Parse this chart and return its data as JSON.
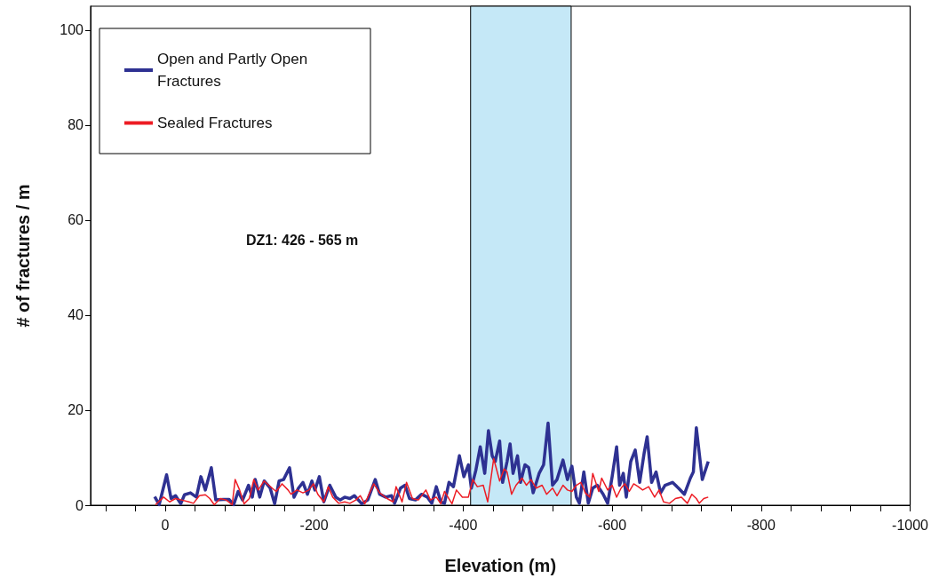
{
  "chart_data": {
    "type": "line",
    "xlabel": "Elevation (m)",
    "ylabel": "# of fractures / m",
    "xlim": [
      100,
      -1000
    ],
    "xticks": [
      {
        "value": 80,
        "label": null
      },
      {
        "value": 40,
        "label": null
      },
      0,
      {
        "value": -40,
        "label": null
      },
      {
        "value": -80,
        "label": null
      },
      {
        "value": -120,
        "label": null
      },
      {
        "value": -160,
        "label": null
      },
      -200,
      {
        "value": -240,
        "label": null
      },
      {
        "value": -280,
        "label": null
      },
      {
        "value": -320,
        "label": null
      },
      {
        "value": -360,
        "label": null
      },
      -400,
      {
        "value": -440,
        "label": null
      },
      {
        "value": -480,
        "label": null
      },
      {
        "value": -520,
        "label": null
      },
      {
        "value": -560,
        "label": null
      },
      -600,
      {
        "value": -640,
        "label": null
      },
      {
        "value": -680,
        "label": null
      },
      {
        "value": -720,
        "label": null
      },
      {
        "value": -760,
        "label": null
      },
      -800,
      {
        "value": -840,
        "label": null
      },
      {
        "value": -880,
        "label": null
      },
      {
        "value": -920,
        "label": null
      },
      {
        "value": -960,
        "label": null
      },
      -1000
    ],
    "ylim": [
      0,
      105
    ],
    "yticks": [
      0,
      20,
      40,
      60,
      80,
      100
    ],
    "grid": false,
    "legend": "top left",
    "marker": "none",
    "bands": [
      {
        "axis": "x",
        "from": -410,
        "to": -545,
        "color": "#c5e8f7"
      }
    ],
    "annotations": [
      "DZ1: 426 - 565 m"
    ],
    "series": [
      {
        "name": "Open and Partly Open Fractures",
        "color": "#2e3192",
        "x": [
          14,
          8,
          -2,
          -8,
          -14,
          -21,
          -26,
          -34,
          -42,
          -48,
          -54,
          -62,
          -68,
          -78,
          -86,
          -92,
          -98,
          -104,
          -112,
          -117,
          -121,
          -127,
          -133,
          -141,
          -147,
          -153,
          -159,
          -167,
          -173,
          -179,
          -185,
          -191,
          -197,
          -201,
          -207,
          -213,
          -221,
          -229,
          -235,
          -241,
          -248,
          -254,
          -264,
          -272,
          -282,
          -288,
          -296,
          -304,
          -308,
          -316,
          -322,
          -328,
          -336,
          -344,
          -352,
          -358,
          -364,
          -370,
          -375,
          -381,
          -387,
          -395,
          -401,
          -407,
          -411,
          -417,
          -423,
          -429,
          -434,
          -439,
          -443,
          -449,
          -453,
          -459,
          -463,
          -467,
          -473,
          -477,
          -483,
          -488,
          -494,
          -502,
          -508,
          -514,
          -520,
          -526,
          -534,
          -540,
          -546,
          -552,
          -556,
          -562,
          -568,
          -574,
          -580,
          -588,
          -594,
          -600,
          -606,
          -610,
          -615,
          -619,
          -625,
          -631,
          -637,
          -643,
          -647,
          -653,
          -659,
          -665,
          -671,
          -681,
          -689,
          -697,
          -705,
          -709,
          -713,
          -721,
          -729
        ],
        "values": [
          1.8,
          0.1,
          6.4,
          1.4,
          2.0,
          0.3,
          2.2,
          2.6,
          1.7,
          6.0,
          3.2,
          7.9,
          1.1,
          1.2,
          1.2,
          0.1,
          2.9,
          1.1,
          4.2,
          1.7,
          5.4,
          1.7,
          5.1,
          3.6,
          0.3,
          5.1,
          5.4,
          7.9,
          1.7,
          3.6,
          4.8,
          2.3,
          5.1,
          3.2,
          6.0,
          0.7,
          4.2,
          1.7,
          1.1,
          1.7,
          1.4,
          2.0,
          0.3,
          1.1,
          5.4,
          2.3,
          1.7,
          2.0,
          0.4,
          3.6,
          4.2,
          1.4,
          1.1,
          2.3,
          1.7,
          0.4,
          3.9,
          0.7,
          0.4,
          4.8,
          3.9,
          10.4,
          6.0,
          8.5,
          3.6,
          7.3,
          12.3,
          6.7,
          15.7,
          10.4,
          9.2,
          13.5,
          4.8,
          9.2,
          12.9,
          6.7,
          10.4,
          4.8,
          8.5,
          7.9,
          2.6,
          6.7,
          8.5,
          17.3,
          4.2,
          5.4,
          9.5,
          5.4,
          8.2,
          1.7,
          0.4,
          7.0,
          0.4,
          3.6,
          4.2,
          2.3,
          0.4,
          6.0,
          12.3,
          4.2,
          6.7,
          1.7,
          9.2,
          11.6,
          4.8,
          11.0,
          14.4,
          4.8,
          7.0,
          2.6,
          4.2,
          4.8,
          3.6,
          2.3,
          5.7,
          7.0,
          16.3,
          5.4,
          9.2
        ]
      },
      {
        "name": "Sealed Fractures",
        "color": "#ed1c24",
        "x": [
          13,
          2,
          -6,
          -14,
          -22,
          -32,
          -38,
          -46,
          -54,
          -60,
          -66,
          -74,
          -82,
          -90,
          -94,
          -100,
          -106,
          -113,
          -119,
          -125,
          -133,
          -139,
          -149,
          -157,
          -165,
          -169,
          -177,
          -185,
          -193,
          -199,
          -205,
          -213,
          -219,
          -225,
          -233,
          -241,
          -248,
          -256,
          -262,
          -268,
          -280,
          -288,
          -298,
          -306,
          -310,
          -318,
          -324,
          -332,
          -340,
          -350,
          -356,
          -364,
          -370,
          -375,
          -385,
          -391,
          -399,
          -407,
          -413,
          -419,
          -427,
          -433,
          -441,
          -449,
          -455,
          -459,
          -465,
          -471,
          -479,
          -485,
          -491,
          -498,
          -506,
          -512,
          -520,
          -526,
          -534,
          -540,
          -546,
          -552,
          -558,
          -564,
          -570,
          -574,
          -582,
          -586,
          -594,
          -600,
          -606,
          -612,
          -617,
          -623,
          -629,
          -635,
          -641,
          -649,
          -657,
          -663,
          -669,
          -677,
          -685,
          -693,
          -701,
          -707,
          -713,
          -717,
          -723,
          -729
        ],
        "values": [
          0.1,
          1.7,
          0.7,
          1.4,
          1.1,
          0.7,
          0.4,
          2.0,
          2.2,
          1.4,
          0.1,
          1.4,
          1.1,
          0.1,
          5.4,
          3.2,
          0.3,
          1.4,
          5.4,
          3.2,
          5.1,
          4.2,
          2.9,
          4.5,
          3.2,
          2.3,
          3.2,
          2.6,
          3.2,
          4.5,
          2.3,
          0.7,
          3.9,
          1.7,
          0.4,
          0.7,
          0.4,
          1.1,
          2.0,
          0.3,
          4.5,
          2.6,
          1.4,
          0.7,
          3.9,
          0.7,
          4.8,
          1.4,
          1.1,
          3.2,
          1.1,
          1.7,
          0.3,
          2.9,
          0.3,
          3.2,
          1.7,
          1.7,
          5.4,
          3.9,
          4.2,
          0.7,
          9.8,
          5.1,
          7.6,
          7.0,
          2.3,
          4.2,
          5.7,
          4.2,
          5.4,
          3.6,
          4.2,
          2.3,
          3.6,
          2.0,
          4.2,
          3.2,
          2.9,
          4.2,
          4.8,
          2.6,
          1.7,
          6.7,
          2.9,
          5.7,
          3.2,
          4.2,
          1.7,
          3.6,
          4.5,
          2.9,
          4.5,
          3.9,
          3.2,
          3.9,
          1.7,
          3.2,
          0.7,
          0.4,
          1.4,
          1.7,
          0.4,
          2.3,
          1.4,
          0.4,
          1.4,
          1.7
        ]
      }
    ]
  }
}
